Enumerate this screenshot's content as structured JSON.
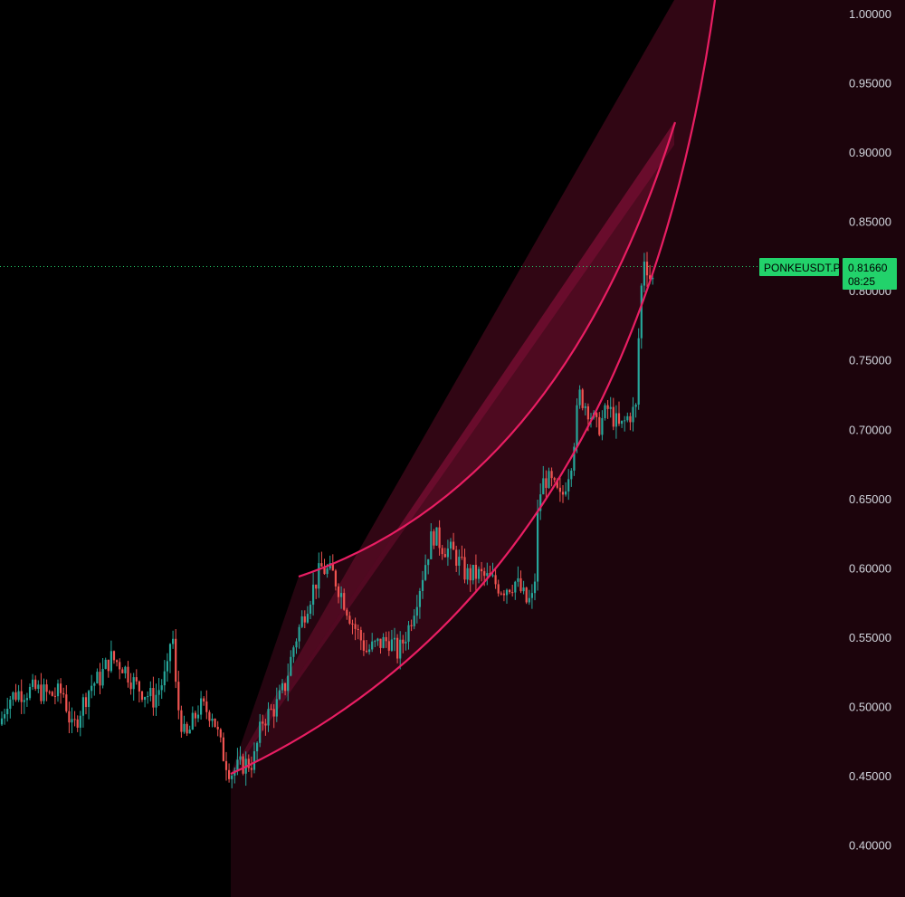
{
  "chart_data": {
    "type": "candlestick",
    "symbol": "PONKEUSDT.P",
    "last_price": "0.81660",
    "countdown": "08:25",
    "y_ticks": [
      "1.00000",
      "0.95000",
      "0.90000",
      "0.85000",
      "0.80000",
      "0.75000",
      "0.70000",
      "0.65000",
      "0.60000",
      "0.55000",
      "0.50000",
      "0.45000",
      "0.40000"
    ],
    "ylim": [
      0.38,
      1.01
    ],
    "colors": {
      "up": "#26a69a",
      "down": "#ef5350",
      "background": "#000000",
      "arc": "#e91e63",
      "tag": "#22d26b"
    },
    "keypoints": [
      [
        0,
        0.487
      ],
      [
        8,
        0.505
      ],
      [
        20,
        0.51
      ],
      [
        40,
        0.512
      ],
      [
        55,
        0.508
      ],
      [
        70,
        0.51
      ],
      [
        80,
        0.482
      ],
      [
        90,
        0.5
      ],
      [
        100,
        0.515
      ],
      [
        110,
        0.52
      ],
      [
        122,
        0.535
      ],
      [
        135,
        0.53
      ],
      [
        150,
        0.515
      ],
      [
        170,
        0.505
      ],
      [
        185,
        0.525
      ],
      [
        190,
        0.56
      ],
      [
        195,
        0.505
      ],
      [
        205,
        0.475
      ],
      [
        220,
        0.5
      ],
      [
        235,
        0.495
      ],
      [
        245,
        0.468
      ],
      [
        255,
        0.452
      ],
      [
        268,
        0.458
      ],
      [
        280,
        0.46
      ],
      [
        290,
        0.49
      ],
      [
        305,
        0.5
      ],
      [
        315,
        0.515
      ],
      [
        325,
        0.545
      ],
      [
        340,
        0.575
      ],
      [
        355,
        0.6
      ],
      [
        368,
        0.595
      ],
      [
        378,
        0.58
      ],
      [
        390,
        0.56
      ],
      [
        405,
        0.54
      ],
      [
        418,
        0.545
      ],
      [
        430,
        0.548
      ],
      [
        440,
        0.538
      ],
      [
        452,
        0.558
      ],
      [
        465,
        0.59
      ],
      [
        478,
        0.625
      ],
      [
        490,
        0.615
      ],
      [
        502,
        0.61
      ],
      [
        515,
        0.595
      ],
      [
        530,
        0.595
      ],
      [
        545,
        0.59
      ],
      [
        555,
        0.585
      ],
      [
        570,
        0.59
      ],
      [
        582,
        0.575
      ],
      [
        590,
        0.578
      ],
      [
        595,
        0.65
      ],
      [
        602,
        0.665
      ],
      [
        610,
        0.66
      ],
      [
        620,
        0.648
      ],
      [
        632,
        0.68
      ],
      [
        640,
        0.725
      ],
      [
        650,
        0.715
      ],
      [
        660,
        0.7
      ],
      [
        672,
        0.715
      ],
      [
        685,
        0.7
      ],
      [
        695,
        0.71
      ],
      [
        703,
        0.715
      ],
      [
        707,
        0.79
      ],
      [
        712,
        0.825
      ],
      [
        718,
        0.81
      ],
      [
        724,
        0.805
      ]
    ]
  }
}
